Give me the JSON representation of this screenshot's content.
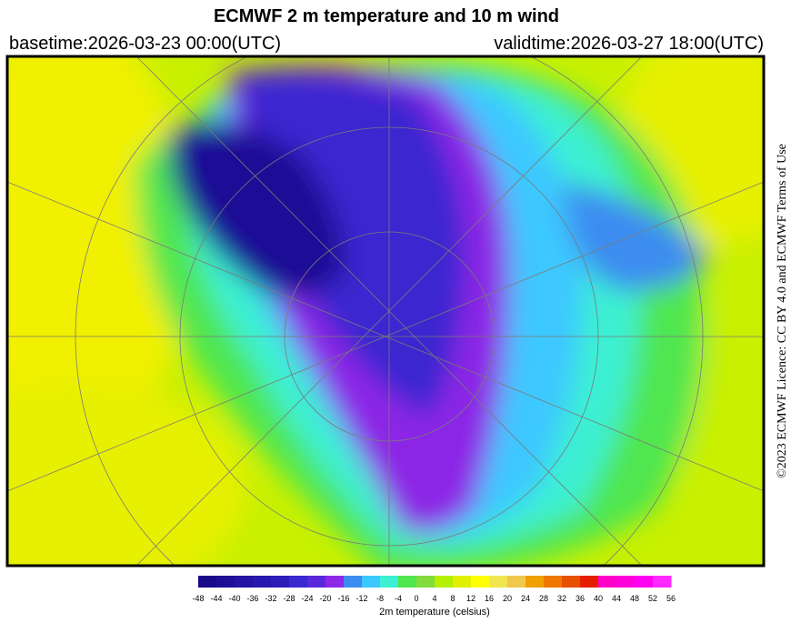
{
  "header": {
    "title": "ECMWF 2 m temperature and 10 m wind",
    "basetime": "basetime:2026-03-23 00:00(UTC)",
    "validtime": "validtime:2026-03-27 18:00(UTC)"
  },
  "credit": "©2023 ECMWF Licence: CC BY 4.0 and ECMWF Terms of Use",
  "colorbar": {
    "label": "2m temperature (celsius)",
    "ticks": [
      -48,
      -44,
      -40,
      -36,
      -32,
      -28,
      -24,
      -20,
      -16,
      -12,
      -8,
      -4,
      0,
      4,
      8,
      12,
      16,
      20,
      24,
      28,
      32,
      36,
      40,
      44,
      48,
      52,
      56
    ],
    "colors": [
      "#1a0a8a",
      "#1e0f96",
      "#2314a2",
      "#2819ae",
      "#2d1eba",
      "#3a28d0",
      "#5a28dc",
      "#8c28e6",
      "#3c8cf0",
      "#3cc8ff",
      "#3cf0d2",
      "#50e650",
      "#82dc3c",
      "#b4f000",
      "#e1f000",
      "#ffff00",
      "#f0e650",
      "#f0c84b",
      "#f0a000",
      "#f07800",
      "#e65000",
      "#e61e00",
      "#ff00c8",
      "#ff00dc",
      "#ff00f0",
      "#ff28ff"
    ]
  }
}
